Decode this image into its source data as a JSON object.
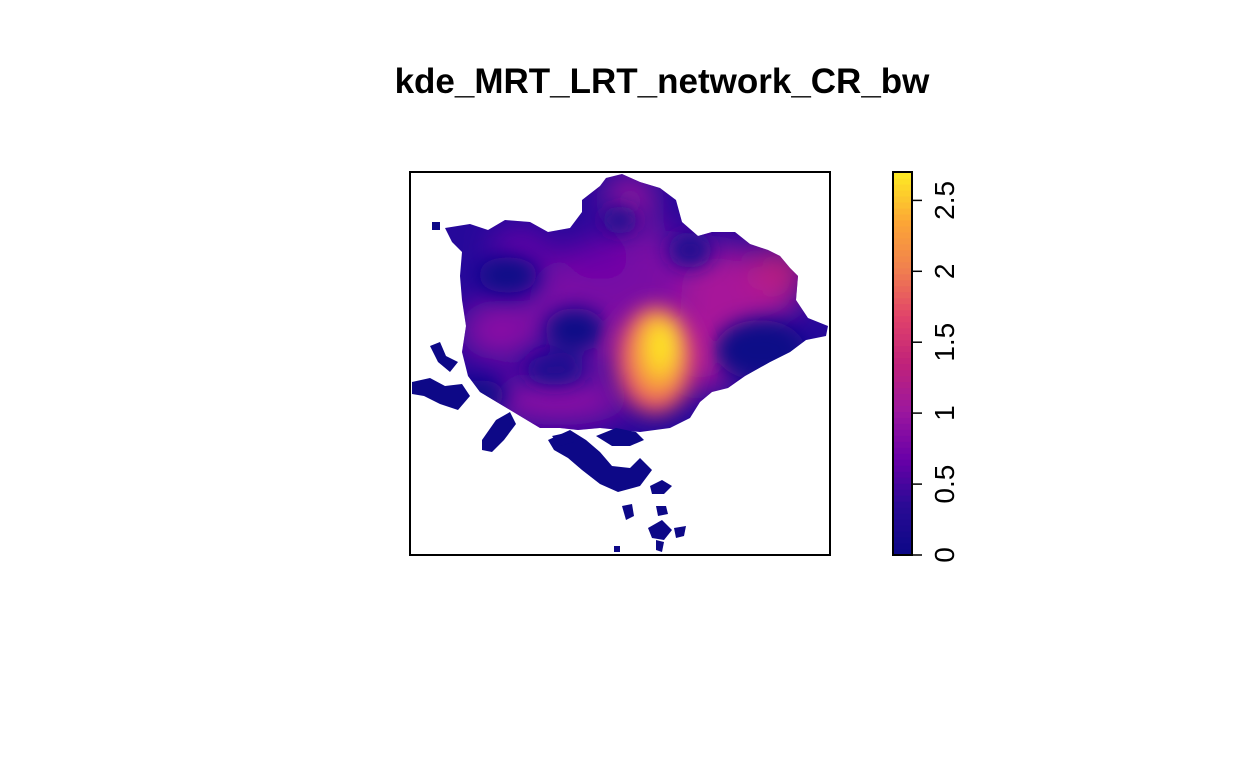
{
  "chart_data": {
    "type": "heatmap",
    "title": "kde_MRT_LRT_network_CR_bw",
    "xlabel": "",
    "ylabel": "",
    "legend": {
      "position": "right",
      "type": "continuous-colorbar",
      "range": [
        0,
        2.7
      ],
      "ticks": [
        {
          "value": 0,
          "label": "0"
        },
        {
          "value": 0.5,
          "label": "0.5"
        },
        {
          "value": 1,
          "label": "1"
        },
        {
          "value": 1.5,
          "label": "1.5"
        },
        {
          "value": 2,
          "label": "2"
        },
        {
          "value": 2.5,
          "label": "2.5"
        }
      ],
      "colormap": [
        "#0d0887",
        "#2a0a95",
        "#6a00a8",
        "#9c179e",
        "#c0227a",
        "#e1436a",
        "#f07f4f",
        "#fca636",
        "#fde725"
      ]
    },
    "density_peak": {
      "max_value": 2.7,
      "location": "center-east"
    },
    "grid": false
  }
}
